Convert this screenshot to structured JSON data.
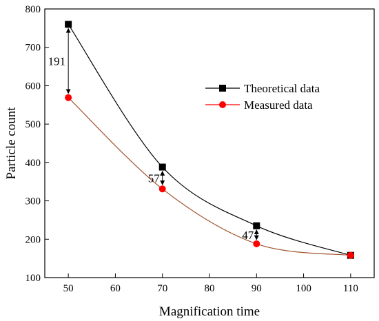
{
  "chart_data": {
    "type": "line",
    "title": "",
    "xlabel": "Magnification time",
    "ylabel": "Particle count",
    "xlim": [
      45,
      115
    ],
    "ylim": [
      100,
      800
    ],
    "x_ticks": [
      50,
      60,
      70,
      80,
      90,
      100,
      110
    ],
    "y_ticks": [
      100,
      200,
      300,
      400,
      500,
      600,
      700,
      800
    ],
    "grid": false,
    "legend_position": "center-right",
    "series": [
      {
        "name": "Theoretical data",
        "color": "#000000",
        "marker": "square",
        "x": [
          50,
          70,
          90,
          110
        ],
        "y": [
          760,
          388,
          235,
          158
        ]
      },
      {
        "name": "Measured data",
        "color": "#ff0000",
        "marker": "circle",
        "x": [
          50,
          70,
          90,
          110
        ],
        "y": [
          569,
          331,
          188,
          158
        ]
      }
    ],
    "annotations": [
      {
        "text": "191",
        "x": 50,
        "y_top": 760,
        "y_bottom": 569
      },
      {
        "text": "57",
        "x": 70,
        "y_top": 388,
        "y_bottom": 331
      },
      {
        "text": "47",
        "x": 90,
        "y_top": 235,
        "y_bottom": 188
      }
    ]
  }
}
